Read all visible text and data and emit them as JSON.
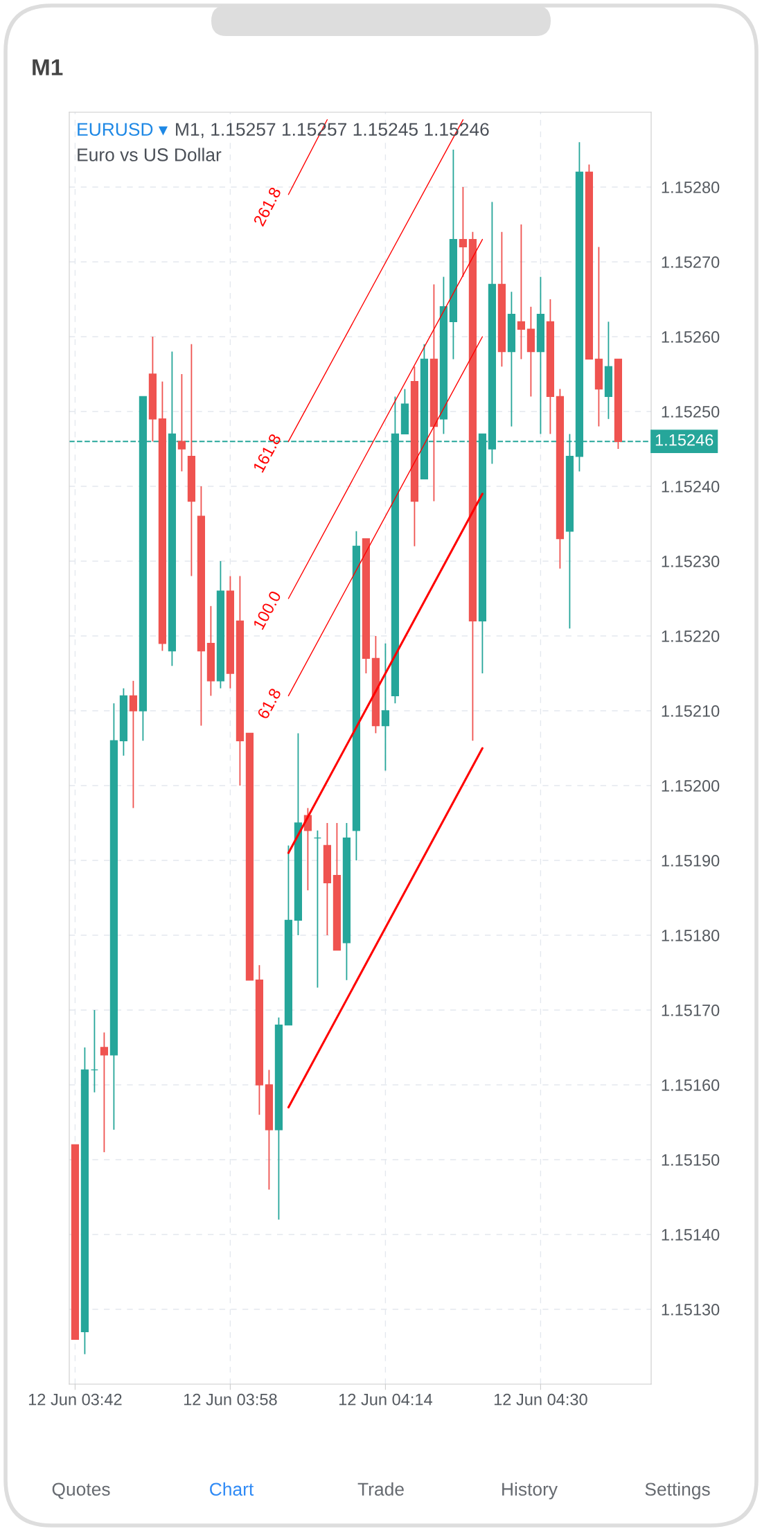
{
  "chart_data": {
    "type": "candlestick",
    "title": "EURUSD ▾",
    "subtitle": "Euro vs US Dollar",
    "annotations": [
      "M1, 1.15257 1.15257 1.15245 1.15246",
      "M1",
      "Quotes",
      "Chart",
      "Trade",
      "History",
      "Settings"
    ],
    "categories": [
      "12 Jun 03:42",
      null,
      null,
      null,
      null,
      null,
      null,
      null,
      null,
      null,
      null,
      null,
      null,
      null,
      null,
      null,
      "12 Jun 03:58",
      null,
      null,
      null,
      null,
      null,
      null,
      null,
      null,
      null,
      null,
      null,
      null,
      null,
      null,
      null,
      "12 Jun 04:14",
      null,
      null,
      null,
      null,
      null,
      null,
      null,
      null,
      null,
      null,
      null,
      null,
      null,
      null,
      null,
      "12 Jun 04:30",
      null,
      null,
      null,
      null,
      null,
      null,
      null,
      null
    ],
    "ohlc": [
      [
        1.15152,
        1.15152,
        1.15126,
        1.15126
      ],
      [
        1.15127,
        1.15165,
        1.15124,
        1.15162
      ],
      [
        1.15162,
        1.1517,
        1.15159,
        1.15162
      ],
      [
        1.15165,
        1.15167,
        1.15151,
        1.15164
      ],
      [
        1.15164,
        1.15211,
        1.15154,
        1.15206
      ],
      [
        1.15206,
        1.15213,
        1.15204,
        1.15212
      ],
      [
        1.15212,
        1.15214,
        1.15197,
        1.1521
      ],
      [
        1.1521,
        1.15252,
        1.15206,
        1.15252
      ],
      [
        1.15255,
        1.1526,
        1.15246,
        1.15249
      ],
      [
        1.15249,
        1.15254,
        1.15218,
        1.15219
      ],
      [
        1.15218,
        1.15258,
        1.15216,
        1.15247
      ],
      [
        1.15246,
        1.15255,
        1.15242,
        1.15245
      ],
      [
        1.15244,
        1.15259,
        1.15228,
        1.15238
      ],
      [
        1.15236,
        1.1524,
        1.15208,
        1.15218
      ],
      [
        1.15219,
        1.15224,
        1.15212,
        1.15214
      ],
      [
        1.15214,
        1.1523,
        1.15213,
        1.15226
      ],
      [
        1.15226,
        1.15228,
        1.15213,
        1.15215
      ],
      [
        1.15222,
        1.15228,
        1.152,
        1.15206
      ],
      [
        1.15207,
        1.15207,
        1.15174,
        1.15174
      ],
      [
        1.15174,
        1.15176,
        1.15156,
        1.1516
      ],
      [
        1.1516,
        1.15162,
        1.15146,
        1.15154
      ],
      [
        1.15154,
        1.15169,
        1.15142,
        1.15168
      ],
      [
        1.15168,
        1.15192,
        1.15168,
        1.15182
      ],
      [
        1.15182,
        1.15207,
        1.1518,
        1.15195
      ],
      [
        1.15196,
        1.15197,
        1.15186,
        1.15194
      ],
      [
        1.15193,
        1.15194,
        1.15173,
        1.15193
      ],
      [
        1.15192,
        1.15195,
        1.1518,
        1.15187
      ],
      [
        1.15188,
        1.15195,
        1.15178,
        1.15178
      ],
      [
        1.15179,
        1.15195,
        1.15174,
        1.15193
      ],
      [
        1.15194,
        1.15234,
        1.1519,
        1.15232
      ],
      [
        1.15233,
        1.15233,
        1.15215,
        1.15217
      ],
      [
        1.15217,
        1.1522,
        1.15207,
        1.15208
      ],
      [
        1.15208,
        1.15219,
        1.15202,
        1.1521
      ],
      [
        1.15212,
        1.15252,
        1.15211,
        1.15247
      ],
      [
        1.15247,
        1.15253,
        1.15247,
        1.15251
      ],
      [
        1.15254,
        1.15256,
        1.15232,
        1.15238
      ],
      [
        1.15241,
        1.15259,
        1.15241,
        1.15257
      ],
      [
        1.15257,
        1.15267,
        1.15238,
        1.15248
      ],
      [
        1.15249,
        1.15268,
        1.15247,
        1.15264
      ],
      [
        1.15262,
        1.15285,
        1.15257,
        1.15273
      ],
      [
        1.15273,
        1.1528,
        1.15268,
        1.15272
      ],
      [
        1.15273,
        1.15274,
        1.15206,
        1.15222
      ],
      [
        1.15222,
        1.15247,
        1.15215,
        1.15247
      ],
      [
        1.15245,
        1.15278,
        1.15243,
        1.15267
      ],
      [
        1.15267,
        1.15274,
        1.15256,
        1.15258
      ],
      [
        1.15258,
        1.15266,
        1.15248,
        1.15263
      ],
      [
        1.15262,
        1.15275,
        1.15257,
        1.15261
      ],
      [
        1.15261,
        1.15264,
        1.15252,
        1.15258
      ],
      [
        1.15258,
        1.15268,
        1.15247,
        1.15263
      ],
      [
        1.15262,
        1.15265,
        1.15247,
        1.15252
      ],
      [
        1.15252,
        1.15253,
        1.15229,
        1.15233
      ],
      [
        1.15234,
        1.15247,
        1.15221,
        1.15244
      ],
      [
        1.15244,
        1.15286,
        1.15242,
        1.15282
      ],
      [
        1.15282,
        1.15283,
        1.15257,
        1.15257
      ],
      [
        1.15257,
        1.15272,
        1.15248,
        1.15253
      ],
      [
        1.15252,
        1.15262,
        1.15249,
        1.15256
      ],
      [
        1.15257,
        1.15257,
        1.15245,
        1.15246
      ]
    ],
    "colors": [
      "#ef5350",
      "#26a69a",
      "#26a69a",
      "#ef5350",
      "#26a69a",
      "#26a69a",
      "#ef5350",
      "#26a69a",
      "#ef5350",
      "#ef5350",
      "#26a69a",
      "#ef5350",
      "#ef5350",
      "#ef5350",
      "#ef5350",
      "#26a69a",
      "#ef5350",
      "#ef5350",
      "#ef5350",
      "#ef5350",
      "#ef5350",
      "#26a69a",
      "#26a69a",
      "#26a69a",
      "#ef5350",
      "#26a69a",
      "#ef5350",
      "#ef5350",
      "#26a69a",
      "#26a69a",
      "#ef5350",
      "#ef5350",
      "#26a69a",
      "#26a69a",
      "#26a69a",
      "#ef5350",
      "#26a69a",
      "#ef5350",
      "#26a69a",
      "#26a69a",
      "#ef5350",
      "#ef5350",
      "#26a69a",
      "#26a69a",
      "#ef5350",
      "#26a69a",
      "#ef5350",
      "#ef5350",
      "#26a69a",
      "#ef5350",
      "#ef5350",
      "#26a69a",
      "#26a69a",
      "#ef5350",
      "#ef5350",
      "#26a69a",
      "#ef5350"
    ],
    "series": [
      {
        "type": "line",
        "color": "#ff0000",
        "values": [
          null,
          null,
          null,
          null,
          null,
          null,
          null,
          null,
          null,
          null,
          null,
          null,
          null,
          null,
          null,
          null,
          null,
          null,
          null,
          null,
          null,
          null,
          1.15157,
          null,
          null,
          null,
          null,
          null,
          null,
          null,
          null,
          null,
          null,
          null,
          null,
          null,
          null,
          null,
          null,
          null,
          null,
          null,
          1.15205,
          null,
          null,
          null,
          null,
          null,
          null,
          null,
          null,
          null,
          null,
          null,
          null,
          null,
          null
        ]
      },
      {
        "type": "line",
        "color": "#ff0000",
        "values": [
          null,
          null,
          null,
          null,
          null,
          null,
          null,
          null,
          null,
          null,
          null,
          null,
          null,
          null,
          null,
          null,
          null,
          null,
          null,
          null,
          null,
          null,
          1.15191,
          null,
          null,
          null,
          null,
          null,
          null,
          null,
          null,
          null,
          null,
          null,
          null,
          null,
          null,
          null,
          null,
          null,
          null,
          null,
          1.15239,
          null,
          null,
          null,
          null,
          null,
          null,
          null,
          null,
          null,
          null,
          null,
          null,
          null,
          null
        ]
      },
      {
        "type": "line",
        "name": "61.8",
        "color": "#ff0000",
        "values": [
          null,
          null,
          null,
          null,
          null,
          null,
          null,
          null,
          null,
          null,
          null,
          null,
          null,
          null,
          null,
          null,
          null,
          null,
          null,
          null,
          null,
          null,
          1.15212,
          null,
          null,
          null,
          null,
          null,
          null,
          null,
          null,
          null,
          null,
          null,
          null,
          null,
          null,
          null,
          null,
          null,
          null,
          null,
          1.1526,
          null,
          null,
          null,
          null,
          null,
          null,
          null,
          null,
          null,
          null,
          null,
          null,
          null,
          null
        ]
      },
      {
        "type": "line",
        "name": "100.0",
        "color": "#ff0000",
        "values": [
          null,
          null,
          null,
          null,
          null,
          null,
          null,
          null,
          null,
          null,
          null,
          null,
          null,
          null,
          null,
          null,
          null,
          null,
          null,
          null,
          null,
          null,
          1.15225,
          null,
          null,
          null,
          null,
          null,
          null,
          null,
          null,
          null,
          null,
          null,
          null,
          null,
          null,
          null,
          null,
          null,
          null,
          null,
          1.15273,
          null,
          null,
          null,
          null,
          null,
          null,
          null,
          null,
          null,
          null,
          null,
          null,
          null,
          null
        ]
      },
      {
        "type": "line",
        "name": "161.8",
        "color": "#ff0000",
        "values": [
          null,
          null,
          null,
          null,
          null,
          null,
          null,
          null,
          null,
          null,
          null,
          null,
          null,
          null,
          null,
          null,
          null,
          null,
          null,
          null,
          null,
          null,
          1.15246,
          null,
          null,
          null,
          null,
          null,
          null,
          null,
          null,
          null,
          null,
          null,
          null,
          null,
          null,
          null,
          null,
          null,
          1.15289,
          null,
          null,
          null,
          null,
          null,
          null,
          null,
          null,
          null,
          null,
          null,
          null,
          null,
          null,
          null,
          null
        ]
      },
      {
        "type": "line",
        "name": "261.8",
        "color": "#ff0000",
        "values": [
          null,
          null,
          null,
          null,
          null,
          null,
          null,
          null,
          null,
          null,
          null,
          null,
          null,
          null,
          null,
          null,
          null,
          null,
          null,
          null,
          null,
          null,
          1.15279,
          null,
          null,
          null,
          1.15289,
          null,
          null,
          null,
          null,
          null,
          null,
          null,
          null,
          null,
          null,
          null,
          null,
          null,
          null,
          null,
          null,
          null,
          null,
          null,
          null,
          null,
          null,
          null,
          null,
          null,
          null,
          null,
          null,
          null,
          null
        ]
      }
    ],
    "ref_lines": [
      {
        "axis": "y",
        "value": 1.15246,
        "label": "1.15246",
        "color": "#26a69a",
        "line_style": "dashed"
      }
    ],
    "ylim": [
      1.1512,
      1.1529
    ],
    "yticks": [
      {
        "value": 1.1513,
        "label": "1.15130"
      },
      {
        "value": 1.1514,
        "label": "1.15140"
      },
      {
        "value": 1.1515,
        "label": "1.15150"
      },
      {
        "value": 1.1516,
        "label": "1.15160"
      },
      {
        "value": 1.1517,
        "label": "1.15170"
      },
      {
        "value": 1.1518,
        "label": "1.15180"
      },
      {
        "value": 1.1519,
        "label": "1.15190"
      },
      {
        "value": 1.152,
        "label": "1.15200"
      },
      {
        "value": 1.1521,
        "label": "1.15210"
      },
      {
        "value": 1.1522,
        "label": "1.15220"
      },
      {
        "value": 1.1523,
        "label": "1.15230"
      },
      {
        "value": 1.1524,
        "label": "1.15240"
      },
      {
        "value": 1.1525,
        "label": "1.15250"
      },
      {
        "value": 1.1526,
        "label": "1.15260"
      },
      {
        "value": 1.1527,
        "label": "1.15270"
      },
      {
        "value": 1.1528,
        "label": "1.15280"
      }
    ],
    "grid": true,
    "line_style": "solid"
  }
}
